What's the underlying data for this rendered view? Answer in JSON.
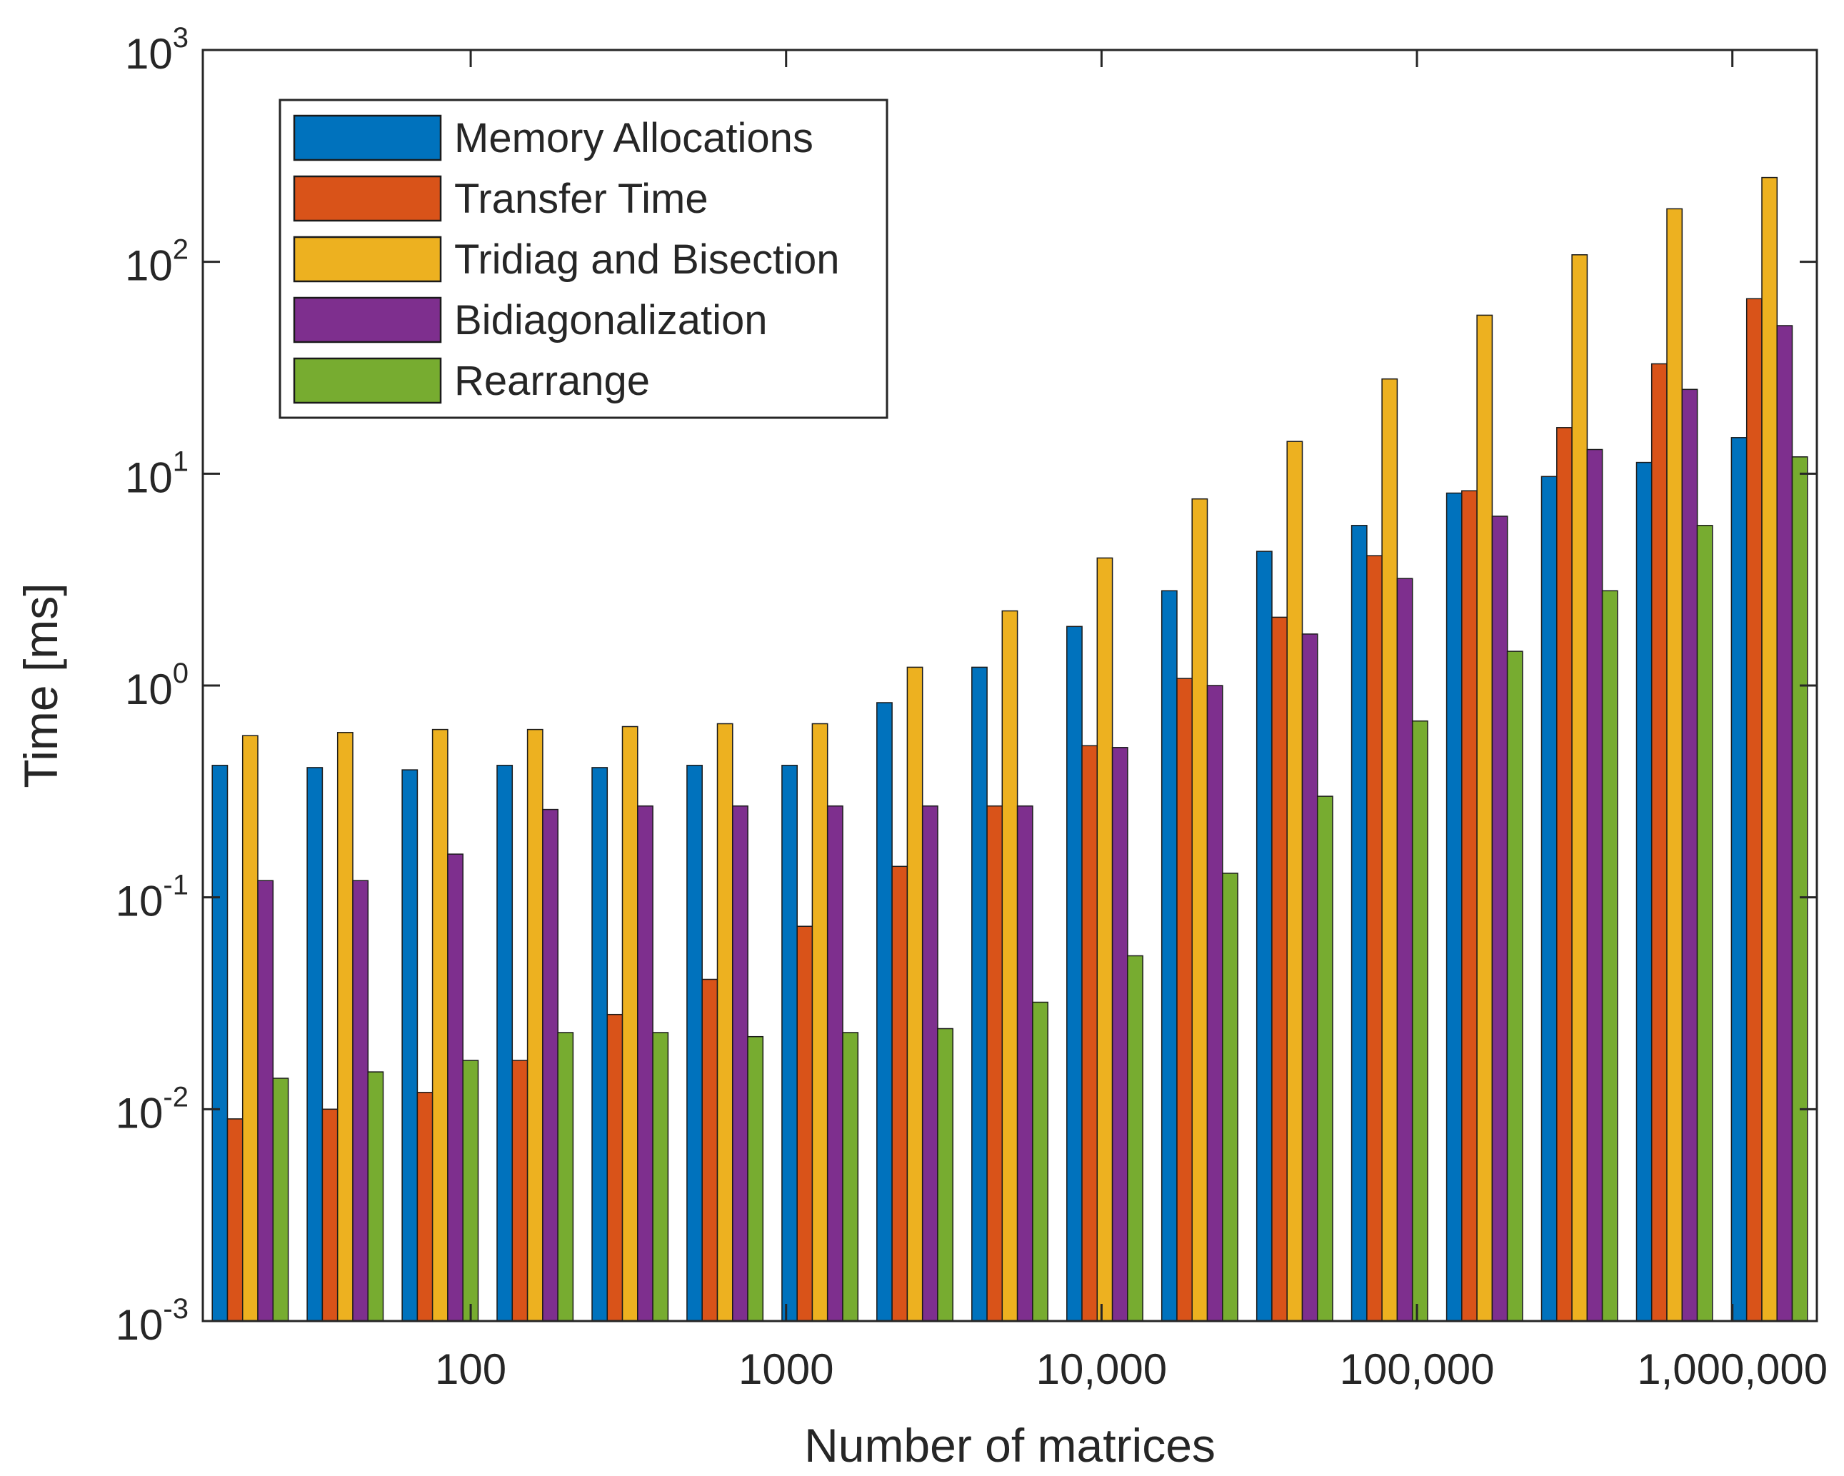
{
  "chart_data": {
    "type": "bar",
    "title": "",
    "xlabel": "Number of matrices",
    "ylabel": "Time [ms]",
    "yscale": "log",
    "ylim": [
      0.001,
      1000
    ],
    "grid": false,
    "legend_position": "top-left",
    "x_tick_labels": [
      "100",
      "1000",
      "10,000",
      "100,000",
      "1,000,000"
    ],
    "y_tick_labels": [
      {
        "base": "10",
        "exp": "-3"
      },
      {
        "base": "10",
        "exp": "-2"
      },
      {
        "base": "10",
        "exp": "-1"
      },
      {
        "base": "10",
        "exp": "0"
      },
      {
        "base": "10",
        "exp": "1"
      },
      {
        "base": "10",
        "exp": "2"
      },
      {
        "base": "10",
        "exp": "3"
      }
    ],
    "categories": [
      20,
      40,
      80,
      160,
      320,
      640,
      1280,
      2560,
      5120,
      10240,
      20480,
      40960,
      81920,
      163840,
      327680,
      655360,
      1310720
    ],
    "series": [
      {
        "name": "Memory Allocations",
        "color": "#0072BD",
        "values": [
          0.42,
          0.41,
          0.4,
          0.42,
          0.41,
          0.42,
          0.42,
          0.83,
          1.22,
          1.9,
          2.8,
          4.3,
          5.7,
          8.1,
          9.7,
          11.3,
          14.8
        ]
      },
      {
        "name": "Transfer Time",
        "color": "#D95319",
        "values": [
          0.009,
          0.01,
          0.012,
          0.017,
          0.028,
          0.041,
          0.073,
          0.14,
          0.27,
          0.52,
          1.08,
          2.1,
          4.1,
          8.3,
          16.5,
          33,
          67
        ]
      },
      {
        "name": "Tridiag and Bisection",
        "color": "#EDB120",
        "values": [
          0.58,
          0.6,
          0.62,
          0.62,
          0.64,
          0.66,
          0.66,
          1.22,
          2.25,
          4.0,
          7.6,
          14.2,
          28,
          56,
          108,
          178,
          250
        ]
      },
      {
        "name": "Bidiagonalization",
        "color": "#7E2F8E",
        "values": [
          0.12,
          0.12,
          0.16,
          0.26,
          0.27,
          0.27,
          0.27,
          0.27,
          0.27,
          0.51,
          1.0,
          1.75,
          3.2,
          6.3,
          13,
          25,
          50
        ]
      },
      {
        "name": "Rearrange",
        "color": "#77AC30",
        "values": [
          0.014,
          0.015,
          0.017,
          0.023,
          0.023,
          0.022,
          0.023,
          0.024,
          0.032,
          0.053,
          0.13,
          0.3,
          0.68,
          1.45,
          2.8,
          5.7,
          12
        ]
      }
    ]
  }
}
